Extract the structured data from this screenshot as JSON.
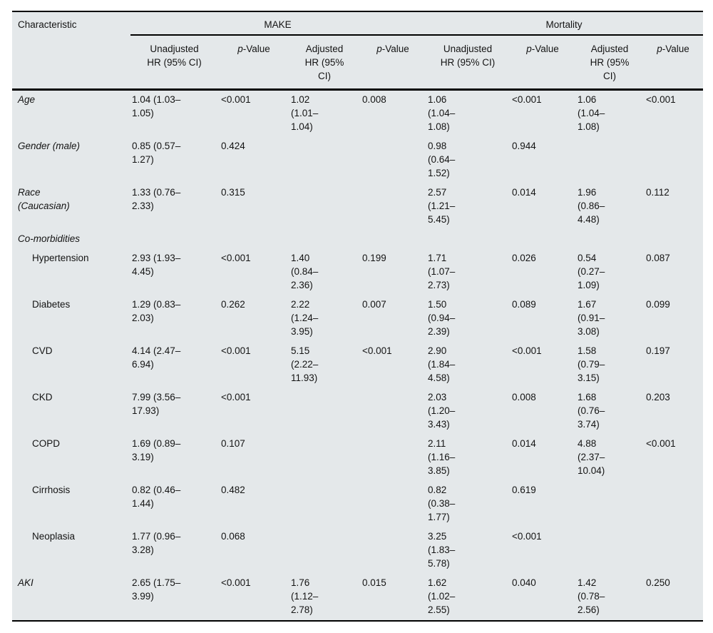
{
  "table": {
    "fill_color": "#e4e8ea",
    "rule_color": "#000000",
    "header": {
      "characteristic": "Characteristic",
      "groups": [
        {
          "label": "MAKE"
        },
        {
          "label": "Mortality"
        }
      ],
      "sub": {
        "unadjusted": "Unadjusted\nHR (95% CI)",
        "adjusted": "Adjusted\nHR (95%\nCI)",
        "p_italic": "p",
        "p_rest": "-Value"
      }
    },
    "rows": [
      {
        "label": "Age",
        "style": "italic",
        "cells": [
          "1.04 (1.03–\n1.05)",
          "<0.001",
          "1.02\n(1.01–\n1.04)",
          "0.008",
          "1.06\n(1.04–\n1.08)",
          "<0.001",
          "1.06\n(1.04–\n1.08)",
          "<0.001"
        ]
      },
      {
        "label": "Gender (male)",
        "style": "italic",
        "cells": [
          "0.85 (0.57–\n1.27)",
          "0.424",
          "",
          "",
          "0.98\n(0.64–\n1.52)",
          "0.944",
          "",
          ""
        ]
      },
      {
        "label": "Race\n(Caucasian)",
        "style": "italic",
        "cells": [
          "1.33 (0.76–\n2.33)",
          "0.315",
          "",
          "",
          "2.57\n(1.21–\n5.45)",
          "0.014",
          "1.96\n(0.86–\n4.48)",
          "0.112"
        ]
      },
      {
        "label": "Co-morbidities",
        "style": "italic",
        "cells": [
          "",
          "",
          "",
          "",
          "",
          "",
          "",
          ""
        ]
      },
      {
        "label": "Hypertension",
        "style": "indent",
        "cells": [
          "2.93 (1.93–\n4.45)",
          "<0.001",
          "1.40\n(0.84–\n2.36)",
          "0.199",
          "1.71\n(1.07–\n2.73)",
          "0.026",
          "0.54\n(0.27–\n1.09)",
          "0.087"
        ]
      },
      {
        "label": "Diabetes",
        "style": "indent",
        "cells": [
          "1.29 (0.83–\n2.03)",
          "0.262",
          "2.22\n(1.24–\n3.95)",
          "0.007",
          "1.50\n(0.94–\n2.39)",
          "0.089",
          "1.67\n(0.91–\n3.08)",
          "0.099"
        ]
      },
      {
        "label": "CVD",
        "style": "indent",
        "cells": [
          "4.14 (2.47–\n6.94)",
          "<0.001",
          "5.15\n(2.22–\n11.93)",
          "<0.001",
          "2.90\n(1.84–\n4.58)",
          "<0.001",
          "1.58\n(0.79–\n3.15)",
          "0.197"
        ]
      },
      {
        "label": "CKD",
        "style": "indent",
        "cells": [
          "7.99 (3.56–\n17.93)",
          "<0.001",
          "",
          "",
          "2.03\n(1.20–\n3.43)",
          "0.008",
          "1.68\n(0.76–\n3.74)",
          "0.203"
        ]
      },
      {
        "label": "COPD",
        "style": "indent",
        "cells": [
          "1.69 (0.89–\n3.19)",
          "0.107",
          "",
          "",
          "2.11\n(1.16–\n3.85)",
          "0.014",
          "4.88\n(2.37–\n10.04)",
          "<0.001"
        ]
      },
      {
        "label": "Cirrhosis",
        "style": "indent",
        "cells": [
          "0.82 (0.46–\n1.44)",
          "0.482",
          "",
          "",
          "0.82\n(0.38–\n1.77)",
          "0.619",
          "",
          ""
        ]
      },
      {
        "label": "Neoplasia",
        "style": "indent",
        "cells": [
          "1.77 (0.96–\n3.28)",
          "0.068",
          "",
          "",
          "3.25\n(1.83–\n5.78)",
          "<0.001",
          "",
          ""
        ]
      },
      {
        "label": "AKI",
        "style": "italic",
        "cells": [
          "2.65 (1.75–\n3.99)",
          "<0.001",
          "1.76\n(1.12–\n2.78)",
          "0.015",
          "1.62\n(1.02–\n2.55)",
          "0.040",
          "1.42\n(0.78–\n2.56)",
          "0.250"
        ]
      }
    ]
  }
}
